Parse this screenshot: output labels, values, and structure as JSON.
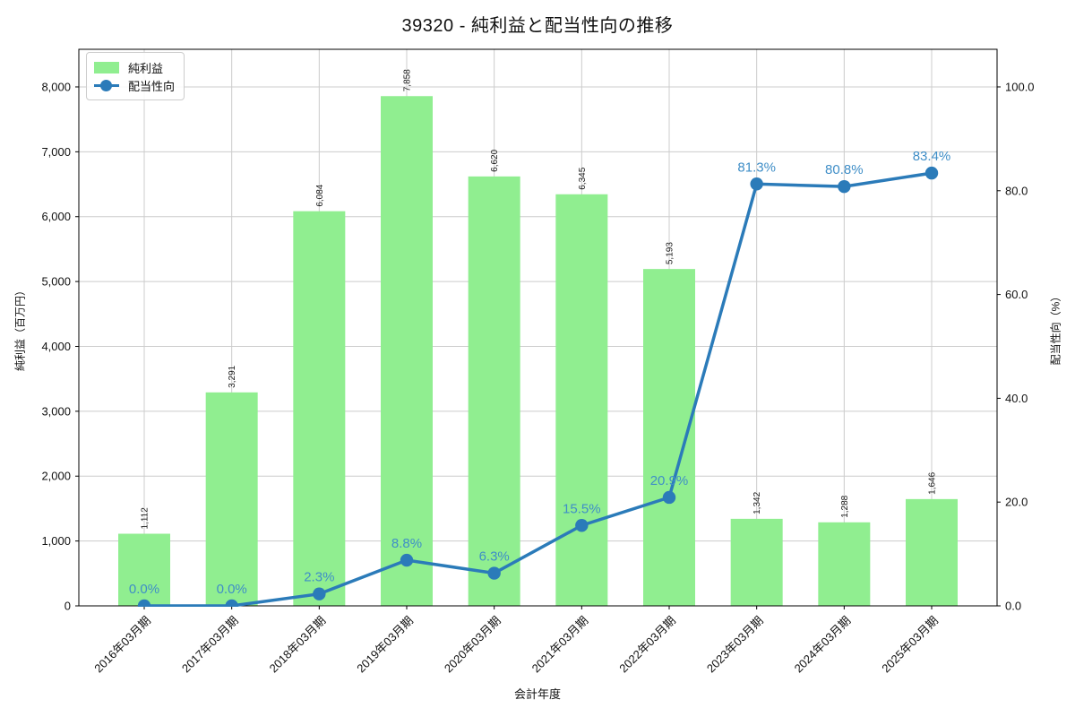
{
  "title": "39320 - 純利益と配当性向の推移",
  "chart_data": {
    "type": "bar",
    "title": "39320 - 純利益と配当性向の推移",
    "xlabel": "会計年度",
    "ylabel_left": "純利益（百万円）",
    "ylabel_right": "配当性向（%）",
    "categories": [
      "2016年03月期",
      "2017年03月期",
      "2018年03月期",
      "2019年03月期",
      "2020年03月期",
      "2021年03月期",
      "2022年03月期",
      "2023年03月期",
      "2024年03月期",
      "2025年03月期"
    ],
    "series": [
      {
        "name": "純利益",
        "type": "bar",
        "axis": "left",
        "color": "#90ee90",
        "values": [
          1112,
          3291,
          6084,
          7858,
          6620,
          6345,
          5193,
          1342,
          1288,
          1646
        ],
        "labels": [
          "1,112",
          "3,291",
          "6,084",
          "7,858",
          "6,620",
          "6,345",
          "5,193",
          "1,342",
          "1,288",
          "1,646"
        ]
      },
      {
        "name": "配当性向",
        "type": "line",
        "axis": "right",
        "color": "#2b7bb9",
        "label_color": "#3f8ec7",
        "values": [
          0.0,
          0.0,
          2.3,
          8.8,
          6.3,
          15.5,
          20.9,
          81.3,
          80.8,
          83.4
        ],
        "labels": [
          "0.0%",
          "0.0%",
          "2.3%",
          "8.8%",
          "6.3%",
          "15.5%",
          "20.9%",
          "81.3%",
          "80.8%",
          "83.4%"
        ]
      }
    ],
    "left_axis": {
      "min": 0,
      "max": 8580,
      "ticks": [
        0,
        1000,
        2000,
        3000,
        4000,
        5000,
        6000,
        7000,
        8000
      ],
      "tick_labels": [
        "0",
        "1,000",
        "2,000",
        "3,000",
        "4,000",
        "5,000",
        "6,000",
        "7,000",
        "8,000"
      ]
    },
    "right_axis": {
      "min": 0,
      "max": 107.25,
      "ticks": [
        0,
        20,
        40,
        60,
        80,
        100
      ],
      "tick_labels": [
        "0.0",
        "20.0",
        "40.0",
        "60.0",
        "80.0",
        "100.0"
      ]
    },
    "grid": true,
    "grid_color": "#cccccc",
    "axis_color": "#000000",
    "legend_position": "upper-left",
    "legend": [
      "純利益",
      "配当性向"
    ]
  }
}
